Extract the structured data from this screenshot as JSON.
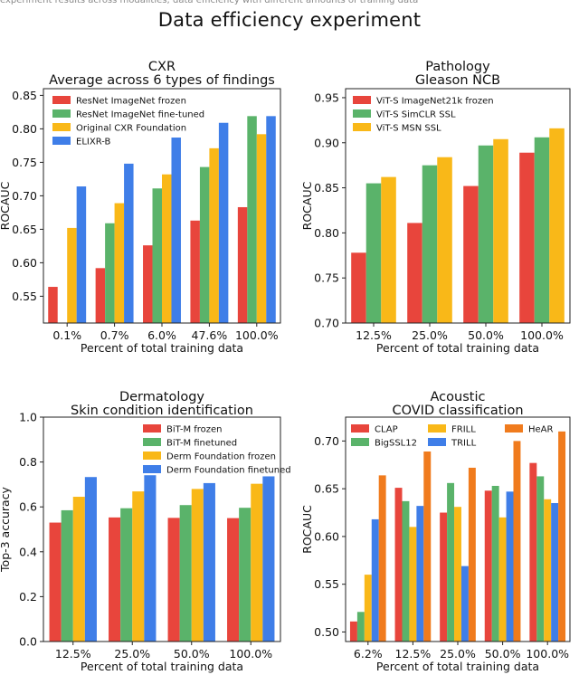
{
  "page": {
    "caption_fragment": "experiment results across modalities; data efficiency with different amounts of training data",
    "title": "Data efficiency experiment"
  },
  "chart_data": [
    {
      "type": "bar",
      "title": "CXR",
      "subtitle": "Average across 6 types of findings",
      "xlabel": "Percent of total training data",
      "ylabel": "ROCAUC",
      "categories": [
        "0.1%",
        "0.7%",
        "6.0%",
        "47.6%",
        "100.0%"
      ],
      "ylim": [
        0.51,
        0.86
      ],
      "yticks": [
        "0.55",
        "0.60",
        "0.65",
        "0.70",
        "0.75",
        "0.80",
        "0.85"
      ],
      "legend_position": "upper-left",
      "legend_columns": 1,
      "series": [
        {
          "name": "ResNet ImageNet frozen",
          "color": "#e8453c",
          "values": [
            0.564,
            0.592,
            0.626,
            0.663,
            0.683
          ]
        },
        {
          "name": "ResNet ImageNet fine-tuned",
          "color": "#5ab36a",
          "values": [
            null,
            0.659,
            0.711,
            0.743,
            0.819
          ]
        },
        {
          "name": "Original CXR Foundation",
          "color": "#f9b818",
          "values": [
            0.652,
            0.689,
            0.732,
            0.771,
            0.792
          ]
        },
        {
          "name": "ELIXR-B",
          "color": "#3f7ee8",
          "values": [
            0.714,
            0.748,
            0.787,
            0.809,
            0.819
          ]
        }
      ]
    },
    {
      "type": "bar",
      "title": "Pathology",
      "subtitle": "Gleason NCB",
      "xlabel": "Percent of total training data",
      "ylabel": "ROCAUC",
      "categories": [
        "12.5%",
        "25.0%",
        "50.0%",
        "100.0%"
      ],
      "ylim": [
        0.7,
        0.96
      ],
      "yticks": [
        "0.70",
        "0.75",
        "0.80",
        "0.85",
        "0.90",
        "0.95"
      ],
      "legend_position": "upper-left",
      "legend_columns": 1,
      "series": [
        {
          "name": "ViT-S ImageNet21k frozen",
          "color": "#e8453c",
          "values": [
            0.778,
            0.811,
            0.852,
            0.889
          ]
        },
        {
          "name": "ViT-S SimCLR SSL",
          "color": "#5ab36a",
          "values": [
            0.855,
            0.875,
            0.897,
            0.906
          ]
        },
        {
          "name": "ViT-S MSN SSL",
          "color": "#f9b818",
          "values": [
            0.862,
            0.884,
            0.904,
            0.916
          ]
        }
      ]
    },
    {
      "type": "bar",
      "title": "Dermatology",
      "subtitle": "Skin condition identification",
      "xlabel": "Percent of total training data",
      "ylabel": "Top-3 accuracy",
      "categories": [
        "12.5%",
        "25.0%",
        "50.0%",
        "100.0%"
      ],
      "ylim": [
        0.0,
        1.0
      ],
      "yticks": [
        "0.0",
        "0.2",
        "0.4",
        "0.6",
        "0.8",
        "1.0"
      ],
      "legend_position": "upper-right",
      "legend_columns": 1,
      "series": [
        {
          "name": "BiT-M frozen",
          "color": "#e8453c",
          "values": [
            0.53,
            0.553,
            0.551,
            0.55
          ]
        },
        {
          "name": "BiT-M finetuned",
          "color": "#5ab36a",
          "values": [
            0.585,
            0.594,
            0.608,
            0.596
          ]
        },
        {
          "name": "Derm Foundation frozen",
          "color": "#f9b818",
          "values": [
            0.645,
            0.669,
            0.68,
            0.703
          ]
        },
        {
          "name": "Derm Foundation finetuned",
          "color": "#3f7ee8",
          "values": [
            0.733,
            0.741,
            0.706,
            0.736
          ]
        }
      ]
    },
    {
      "type": "bar",
      "title": "Acoustic",
      "subtitle": "COVID classification",
      "xlabel": "Percent of total training data",
      "ylabel": "ROCAUC",
      "categories": [
        "6.2%",
        "12.5%",
        "25.0%",
        "50.0%",
        "100.0%"
      ],
      "ylim": [
        0.49,
        0.725
      ],
      "yticks": [
        "0.50",
        "0.55",
        "0.60",
        "0.65",
        "0.70"
      ],
      "legend_position": "upper-left",
      "legend_columns": 3,
      "series": [
        {
          "name": "CLAP",
          "color": "#e8453c",
          "values": [
            0.511,
            0.651,
            0.625,
            0.648,
            0.677
          ]
        },
        {
          "name": "BigSSL12",
          "color": "#5ab36a",
          "values": [
            0.521,
            0.637,
            0.656,
            0.653,
            0.663
          ]
        },
        {
          "name": "FRILL",
          "color": "#f9b818",
          "values": [
            0.56,
            0.61,
            0.631,
            0.62,
            0.639
          ]
        },
        {
          "name": "TRILL",
          "color": "#3f7ee8",
          "values": [
            0.618,
            0.632,
            0.569,
            0.647,
            0.635
          ]
        },
        {
          "name": "HeAR",
          "color": "#f07b1d",
          "values": [
            0.664,
            0.689,
            0.672,
            0.7,
            0.71
          ]
        }
      ]
    }
  ]
}
